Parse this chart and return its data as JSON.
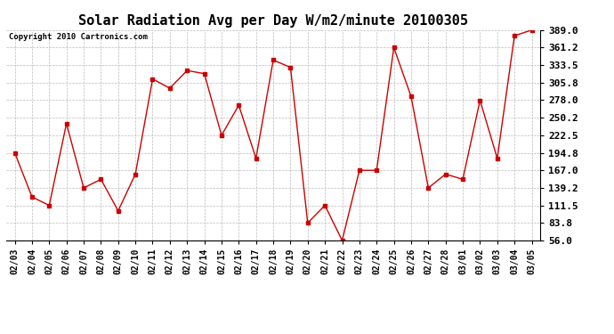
{
  "title": "Solar Radiation Avg per Day W/m2/minute 20100305",
  "copyright_text": "Copyright 2010 Cartronics.com",
  "dates": [
    "02/03",
    "02/04",
    "02/05",
    "02/06",
    "02/07",
    "02/08",
    "02/09",
    "02/10",
    "02/11",
    "02/12",
    "02/13",
    "02/14",
    "02/15",
    "02/16",
    "02/17",
    "02/18",
    "02/19",
    "02/20",
    "02/21",
    "02/22",
    "02/23",
    "02/24",
    "02/25",
    "02/26",
    "02/27",
    "02/28",
    "03/01",
    "03/02",
    "03/03",
    "03/04",
    "03/05"
  ],
  "values": [
    194.8,
    125.0,
    111.5,
    241.0,
    139.2,
    152.8,
    103.0,
    161.0,
    311.5,
    297.0,
    325.0,
    320.0,
    222.5,
    270.0,
    186.0,
    341.5,
    330.0,
    83.8,
    111.5,
    56.0,
    167.0,
    167.0,
    361.2,
    283.8,
    139.2,
    161.0,
    152.8,
    277.8,
    186.0,
    380.0,
    389.0
  ],
  "line_color": "#cc0000",
  "marker": "s",
  "marker_size": 2.5,
  "bg_color": "#ffffff",
  "plot_bg_color": "#ffffff",
  "grid_color": "#bbbbbb",
  "ylim": [
    56.0,
    389.0
  ],
  "yticks": [
    56.0,
    83.8,
    111.5,
    139.2,
    167.0,
    194.8,
    222.5,
    250.2,
    278.0,
    305.8,
    333.5,
    361.2,
    389.0
  ],
  "title_fontsize": 11,
  "copyright_fontsize": 6.5,
  "tick_fontsize": 7,
  "ytick_fontsize": 8
}
